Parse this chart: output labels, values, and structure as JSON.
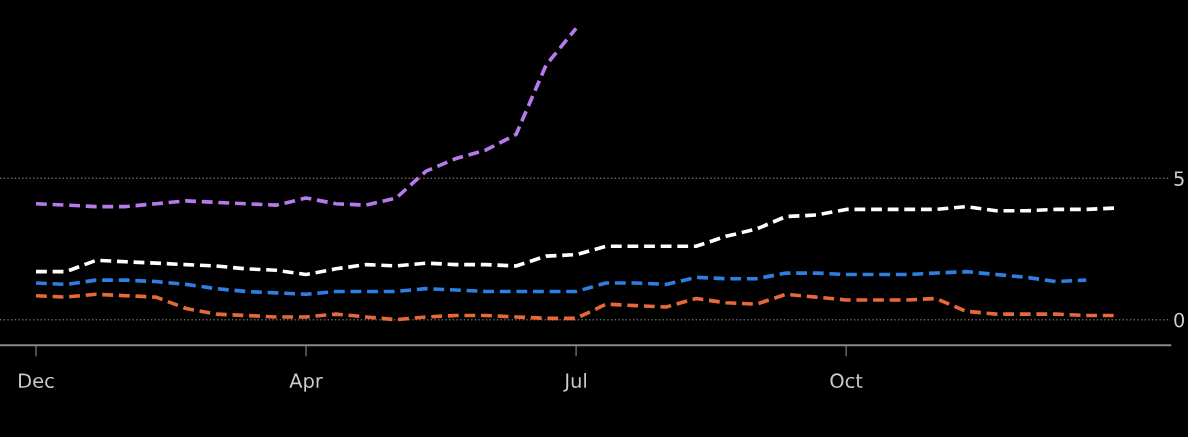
{
  "chart_data": {
    "type": "line",
    "line_style": "dashed",
    "marker": "none",
    "grid": "y",
    "legend": false,
    "categories": [
      "Dec",
      null,
      null,
      null,
      null,
      null,
      null,
      null,
      null,
      "Apr",
      null,
      null,
      null,
      null,
      null,
      null,
      null,
      null,
      "Jul",
      null,
      null,
      null,
      null,
      null,
      null,
      null,
      null,
      "Oct",
      null,
      null,
      null,
      null,
      null,
      null,
      null,
      null,
      null
    ],
    "ylim": [
      -0.9,
      11.3
    ],
    "yticks": [
      0,
      5
    ],
    "series": [
      {
        "color": "#b57bea",
        "values": [
          4.1,
          4.05,
          4.0,
          4.0,
          4.1,
          4.2,
          4.15,
          4.1,
          4.05,
          4.3,
          4.1,
          4.05,
          4.3,
          5.25,
          5.7,
          6.0,
          6.55,
          9.0,
          10.3,
          null,
          null,
          null,
          null,
          null,
          null,
          null,
          null,
          null,
          null,
          null,
          null,
          null,
          null,
          null,
          null,
          null,
          null
        ]
      },
      {
        "color": "#ffffff",
        "values": [
          1.7,
          1.7,
          2.1,
          2.05,
          2.0,
          1.95,
          1.9,
          1.8,
          1.75,
          1.6,
          1.8,
          1.95,
          1.9,
          2.0,
          1.95,
          1.95,
          1.9,
          2.25,
          2.3,
          2.6,
          2.6,
          2.6,
          2.6,
          2.95,
          3.2,
          3.65,
          3.7,
          3.9,
          3.9,
          3.9,
          3.9,
          4.0,
          3.85,
          3.85,
          3.9,
          3.9,
          3.95
        ]
      },
      {
        "color": "#2f7fe0",
        "values": [
          1.3,
          1.25,
          1.4,
          1.4,
          1.35,
          1.25,
          1.1,
          1.0,
          0.95,
          0.9,
          1.0,
          1.0,
          1.0,
          1.1,
          1.05,
          1.0,
          1.0,
          1.0,
          1.0,
          1.3,
          1.3,
          1.25,
          1.5,
          1.45,
          1.45,
          1.65,
          1.65,
          1.6,
          1.6,
          1.6,
          1.65,
          1.7,
          1.6,
          1.5,
          1.35,
          1.4,
          null
        ]
      },
      {
        "color": "#e8683a",
        "values": [
          0.85,
          0.8,
          0.9,
          0.85,
          0.8,
          0.4,
          0.2,
          0.15,
          0.1,
          0.1,
          0.2,
          0.1,
          0.0,
          0.1,
          0.15,
          0.15,
          0.1,
          0.05,
          0.05,
          0.55,
          0.5,
          0.45,
          0.75,
          0.6,
          0.55,
          0.9,
          0.8,
          0.7,
          0.7,
          0.7,
          0.75,
          0.3,
          0.2,
          0.2,
          0.2,
          0.15,
          0.15
        ]
      }
    ]
  }
}
